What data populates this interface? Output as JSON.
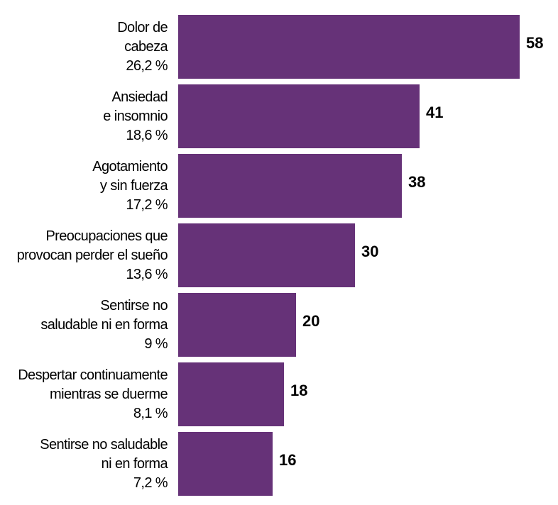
{
  "chart_data": {
    "type": "bar",
    "orientation": "horizontal",
    "bar_color": "#663278",
    "categories": [
      "Dolor de cabeza",
      "Ansiedad e insomnio",
      "Agotamiento y sin fuerza",
      "Preocupaciones que provocan perder el sueño",
      "Sentirse no saludable ni en forma",
      "Despertar continuamente mientras se duerme",
      "Sentirse no saludable ni en forma"
    ],
    "category_lines": [
      [
        "Dolor de",
        "cabeza"
      ],
      [
        "Ansiedad",
        "e insomnio"
      ],
      [
        "Agotamiento",
        "y sin fuerza"
      ],
      [
        "Preocupaciones que",
        "provocan perder el sueño"
      ],
      [
        "Sentirse no",
        "saludable ni en forma"
      ],
      [
        "Despertar continuamente",
        "mientras se duerme"
      ],
      [
        "Sentirse no saludable",
        "ni en forma"
      ]
    ],
    "percent_labels": [
      "26,2 %",
      "18,6 %",
      "17,2 %",
      "13,6 %",
      "9 %",
      "8,1 %",
      "7,2 %"
    ],
    "values": [
      58,
      41,
      38,
      30,
      20,
      18,
      16
    ],
    "value_labels": [
      "58",
      "41",
      "38",
      "30",
      "20",
      "18",
      "16"
    ],
    "xlim": [
      0,
      58
    ],
    "title": "",
    "xlabel": "",
    "ylabel": "",
    "grid": false
  }
}
